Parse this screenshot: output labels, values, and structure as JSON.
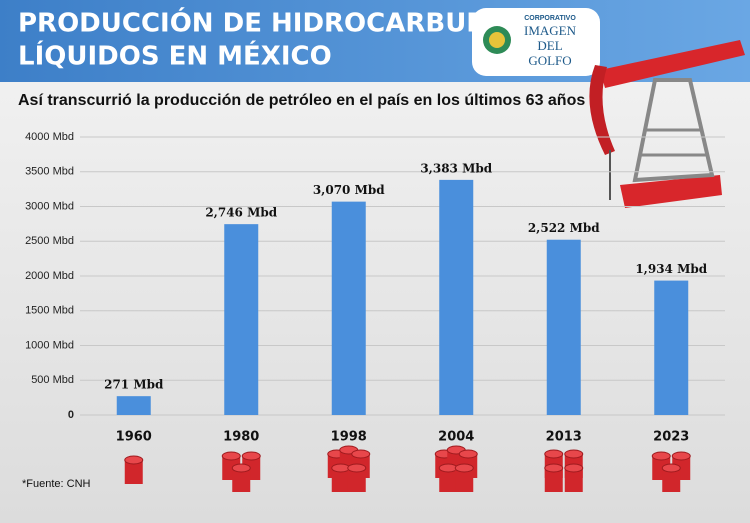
{
  "chart_data": {
    "type": "bar",
    "title": [
      "PRODUCCIÓN DE HIDROCARBUROS",
      "LÍQUIDOS EN MÉXICO"
    ],
    "subtitle": "Así transcurrió la producción de petróleo en el país en los últimos 63 años",
    "logo": [
      "CORPORATIVO",
      "IMAGEN",
      "DEL",
      "GOLFO"
    ],
    "source": "*Fuente: CNH",
    "categories": [
      "1960",
      "1980",
      "1998",
      "2004",
      "2013",
      "2023"
    ],
    "values": [
      271,
      2746,
      3070,
      3383,
      2522,
      1934
    ],
    "value_labels": [
      "271 Mbd",
      "2,746 Mbd",
      "3,070 Mbd",
      "3,383 Mbd",
      "2,522 Mbd",
      "1,934 Mbd"
    ],
    "color": "#4a8fdc",
    "ylim": [
      0,
      4000
    ],
    "yticks": [
      0,
      {
        "value": 500,
        "label": "500 Mbd"
      },
      {
        "value": 1000,
        "label": "1000 Mbd"
      },
      {
        "value": 1500,
        "label": "1500 Mbd"
      },
      {
        "value": 2000,
        "label": "2000 Mbd"
      },
      {
        "value": 2500,
        "label": "2500 Mbd"
      },
      {
        "value": 3000,
        "label": "3000 Mbd"
      },
      {
        "value": 3500,
        "label": "3500 Mbd"
      },
      {
        "value": 4000,
        "label": "4000 Mbd"
      }
    ],
    "grid": true
  }
}
